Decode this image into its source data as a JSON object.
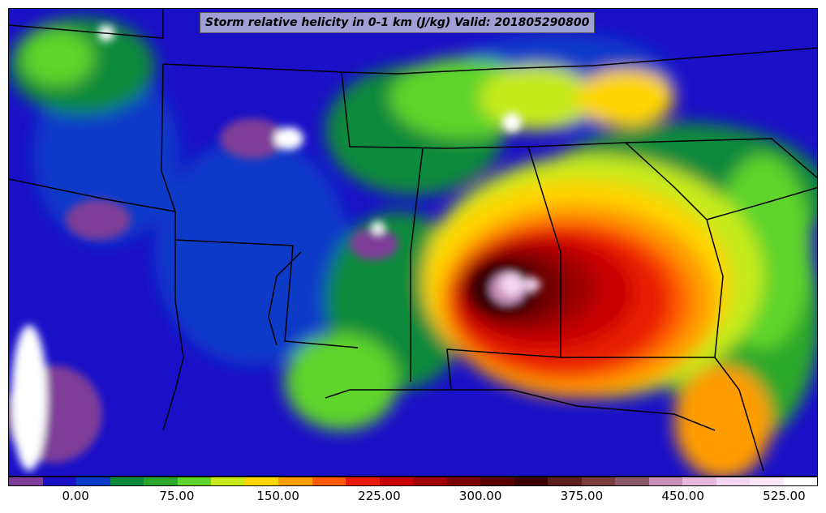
{
  "title": "Storm relative helicity in 0-1 km (J/kg) Valid: 201805290800",
  "colorbar": {
    "min": -50,
    "max": 550,
    "step": 25,
    "colors": [
      "#7d3c98",
      "#1a10c8",
      "#0a3ac8",
      "#0a8a3a",
      "#2aa82a",
      "#5ed42a",
      "#c6ea1a",
      "#ffd500",
      "#ff9c00",
      "#ff5a00",
      "#e81a00",
      "#c80000",
      "#a00000",
      "#7a0000",
      "#5a0000",
      "#3a0000",
      "#5a2020",
      "#7a3c3c",
      "#8a5a6a",
      "#c690b8",
      "#e6b8e0",
      "#f4d6f0",
      "#fae8f8",
      "#ffffff"
    ],
    "tick_labels": [
      "0.00",
      "75.00",
      "150.00",
      "225.00",
      "300.00",
      "375.00",
      "450.00",
      "525.00"
    ],
    "tick_values": [
      0,
      75,
      150,
      225,
      300,
      375,
      450,
      525
    ]
  },
  "colors": {
    "background": "#1a10c8",
    "border": "#000000"
  }
}
